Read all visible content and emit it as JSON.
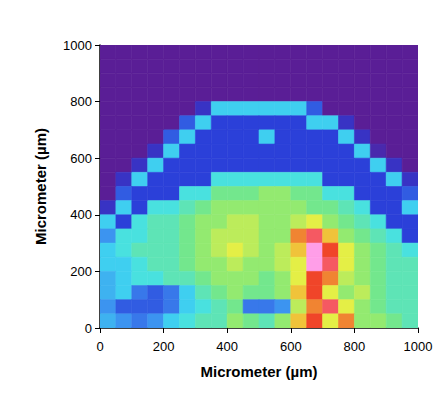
{
  "chart_data": {
    "type": "heatmap",
    "xlabel": "Micrometer (µm)",
    "ylabel": "Micrometer (µm)",
    "xlim": [
      0,
      1000
    ],
    "xticks": [
      0,
      200,
      400,
      600,
      800,
      1000
    ],
    "ylim": [
      0,
      1000
    ],
    "yticks": [
      0,
      200,
      400,
      600,
      800,
      1000
    ],
    "grid": false,
    "x": [
      25,
      75,
      125,
      175,
      225,
      275,
      325,
      375,
      425,
      475,
      525,
      575,
      625,
      675,
      725,
      775,
      825,
      875,
      925,
      975
    ],
    "y": [
      975,
      925,
      875,
      825,
      775,
      725,
      675,
      625,
      575,
      525,
      475,
      425,
      375,
      325,
      275,
      225,
      175,
      125,
      75,
      25
    ],
    "zlim": [
      0,
      10
    ],
    "cells": [
      [
        0,
        0,
        0,
        0,
        0,
        0,
        0,
        0,
        0,
        0,
        0,
        0,
        0,
        0,
        0,
        0,
        0,
        0,
        0,
        0
      ],
      [
        0,
        0,
        0,
        0,
        0,
        0,
        0,
        0,
        0,
        0,
        0,
        0,
        0,
        0,
        0,
        0,
        0,
        0,
        0,
        0
      ],
      [
        0,
        0,
        0,
        0,
        0,
        0,
        0,
        0,
        0,
        0,
        0,
        0,
        0,
        0,
        0,
        0,
        0,
        0,
        0,
        0
      ],
      [
        0,
        0,
        0,
        0,
        0,
        0,
        0,
        0,
        0,
        0,
        0,
        0,
        0,
        0,
        0,
        0,
        0,
        0,
        0,
        0
      ],
      [
        0,
        0,
        0,
        0,
        0,
        0,
        1,
        4,
        4,
        4,
        4,
        4,
        4,
        2,
        0,
        0,
        0,
        0,
        0,
        0
      ],
      [
        0,
        0,
        0,
        0,
        0,
        2,
        4,
        1.5,
        1.5,
        1.5,
        1.5,
        1.5,
        1.5,
        4,
        4,
        1,
        0,
        0,
        0,
        0
      ],
      [
        0,
        0,
        0,
        0,
        2,
        4,
        1.5,
        1.5,
        1.5,
        1.5,
        4,
        1.5,
        1.5,
        1.5,
        1.5,
        4,
        1,
        0,
        0,
        0
      ],
      [
        0,
        0,
        0,
        1,
        4,
        1.5,
        1.5,
        1.5,
        1.5,
        1.5,
        1.5,
        1.5,
        1.5,
        1.5,
        1.5,
        1.5,
        4,
        0.5,
        0,
        0
      ],
      [
        0,
        0,
        1,
        4,
        1.5,
        1.5,
        1.5,
        1.5,
        1.5,
        1.5,
        1.5,
        1.5,
        1.5,
        1.5,
        1.5,
        1.5,
        1.5,
        4,
        1,
        0
      ],
      [
        0,
        1,
        4,
        1.5,
        1.5,
        1.5,
        1.5,
        4.5,
        4.5,
        4.5,
        4.5,
        4.5,
        4.5,
        4.5,
        1.5,
        1.5,
        1.5,
        1.5,
        4,
        1
      ],
      [
        0,
        2,
        1.5,
        1.5,
        1.5,
        4.5,
        4.5,
        5.5,
        5.5,
        5.5,
        6,
        6,
        5.5,
        5.5,
        4.5,
        4.5,
        1.5,
        1.5,
        1.5,
        2
      ],
      [
        1,
        4,
        1.5,
        4.5,
        4.5,
        5,
        5.5,
        6,
        6,
        6,
        6,
        6,
        6,
        5.5,
        5.5,
        5,
        4.5,
        1.5,
        1.5,
        4
      ],
      [
        4,
        1.5,
        4.5,
        5,
        5,
        5.5,
        6,
        6,
        6.5,
        6.5,
        6,
        6,
        6.5,
        7,
        6,
        5.5,
        5,
        4.5,
        1.5,
        1.5
      ],
      [
        3,
        4.5,
        4.5,
        5,
        5,
        5.5,
        6,
        6.5,
        6.5,
        6.5,
        6,
        6,
        8,
        9,
        7.5,
        6,
        5.5,
        5,
        4.5,
        1.5
      ],
      [
        4,
        4.5,
        5,
        5,
        5,
        5.5,
        6,
        6.5,
        7,
        6.5,
        6,
        6.5,
        7.5,
        10,
        8.5,
        7,
        6,
        5.5,
        5,
        4.5
      ],
      [
        4,
        4,
        4.5,
        5,
        5,
        5.5,
        6,
        6,
        6.5,
        6,
        6,
        6.5,
        7,
        10,
        9,
        7,
        6,
        5.5,
        5,
        5
      ],
      [
        3.5,
        4,
        4.5,
        4.5,
        5,
        5,
        5.5,
        6,
        6,
        6,
        5.5,
        6,
        7,
        8.5,
        8,
        6.5,
        6,
        5.5,
        5,
        5
      ],
      [
        3.5,
        4,
        2.5,
        2,
        2.5,
        4,
        5,
        5.5,
        6,
        5.5,
        5.5,
        6,
        7.5,
        8.5,
        7,
        6,
        6.5,
        5.5,
        5,
        5
      ],
      [
        3,
        2,
        2,
        2,
        2.5,
        4,
        4.5,
        5,
        5.5,
        2.5,
        2.5,
        3,
        6.5,
        8,
        9,
        7,
        6,
        5.5,
        5,
        5
      ],
      [
        3.5,
        3,
        2.5,
        3,
        4,
        4.5,
        5,
        5,
        6,
        5.5,
        5,
        6,
        7.5,
        8.5,
        7,
        8,
        6,
        6,
        5.5,
        5
      ]
    ]
  }
}
